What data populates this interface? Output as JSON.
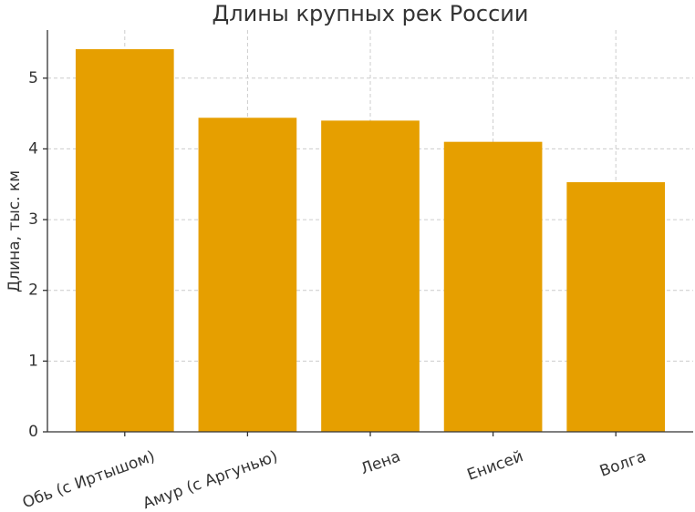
{
  "chart_data": {
    "type": "bar",
    "title": "Длины крупных рек России",
    "y_label": "Длина, тыс. км",
    "categories": [
      "Обь (с Иртышом)",
      "Амур (с Аргунью)",
      "Лена",
      "Енисей",
      "Волга"
    ],
    "values": [
      5.41,
      4.44,
      4.4,
      4.1,
      3.53
    ],
    "color": "#e69f00",
    "ylim": [
      0,
      5.68
    ],
    "yticks": [
      0,
      1,
      2,
      3,
      4,
      5
    ],
    "grid": true
  }
}
